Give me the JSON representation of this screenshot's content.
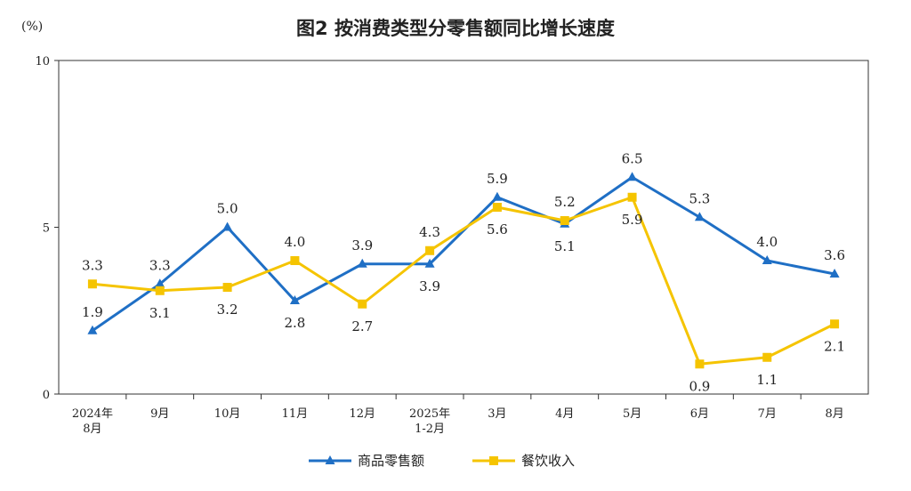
{
  "title": "图2  按消费类型分零售额同比增长速度",
  "unit": "(%)",
  "colors": {
    "series0": "#1f6fc5",
    "series1": "#f5c400",
    "axis": "#333333"
  },
  "chart_data": {
    "type": "line",
    "categories": [
      [
        "2024年",
        "8月"
      ],
      [
        "9月"
      ],
      [
        "10月"
      ],
      [
        "11月"
      ],
      [
        "12月"
      ],
      [
        "2025年",
        "1-2月"
      ],
      [
        "3月"
      ],
      [
        "4月"
      ],
      [
        "5月"
      ],
      [
        "6月"
      ],
      [
        "7月"
      ],
      [
        "8月"
      ]
    ],
    "ylim": [
      0,
      10
    ],
    "yticks": [
      0,
      5,
      10
    ],
    "grid": false,
    "legend": "bottom",
    "series": [
      {
        "name": "商品零售额",
        "marker": "triangle",
        "values": [
          1.9,
          3.3,
          5.0,
          2.8,
          3.9,
          3.9,
          5.9,
          5.1,
          6.5,
          5.3,
          4.0,
          3.6
        ],
        "labels": [
          "1.9",
          "3.3",
          "5.0",
          "2.8",
          "3.9",
          "3.9",
          "5.9",
          "5.1",
          "6.5",
          "5.3",
          "4.0",
          "3.6"
        ]
      },
      {
        "name": "餐饮收入",
        "marker": "square",
        "values": [
          3.3,
          3.1,
          3.2,
          4.0,
          2.7,
          4.3,
          5.6,
          5.2,
          5.9,
          0.9,
          1.1,
          2.1
        ],
        "labels": [
          "3.3",
          "3.1",
          "3.2",
          "4.0",
          "2.7",
          "4.3",
          "5.6",
          "5.2",
          "5.9",
          "0.9",
          "1.1",
          "2.1"
        ]
      }
    ]
  }
}
